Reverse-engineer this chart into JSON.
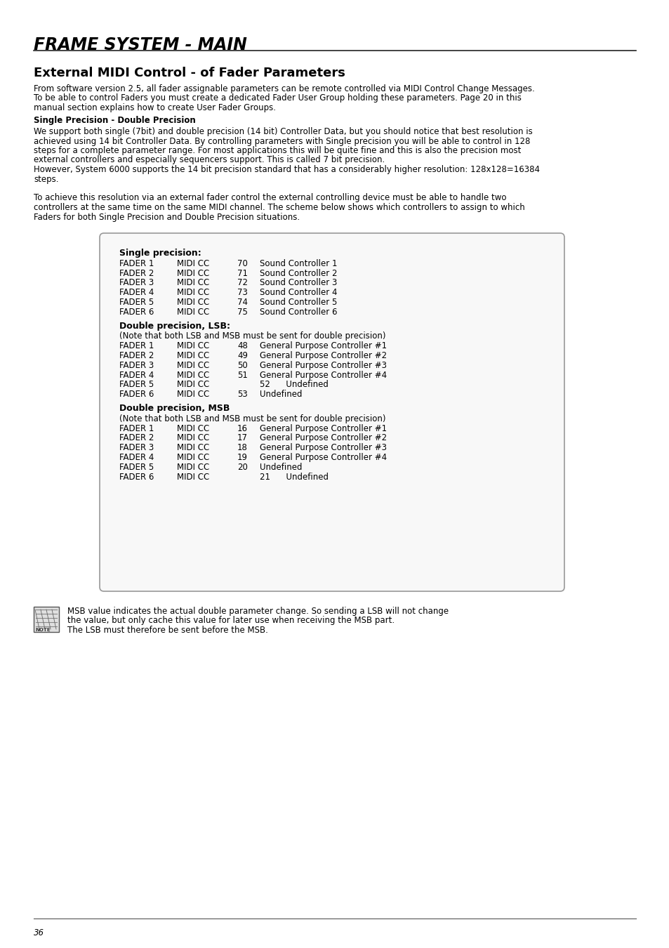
{
  "page_title": "FRAME SYSTEM - MAIN",
  "section_title": "External MIDI Control - of Fader Parameters",
  "intro_text_lines": [
    "From software version 2.5, all fader assignable parameters can be remote controlled via MIDI Control Change Messages.",
    "To be able to control Faders you must create a dedicated Fader User Group holding these parameters. Page 20 in this",
    "manual section explains how to create User Fader Groups."
  ],
  "subsection_title": "Single Precision - Double Precision",
  "body_text1_lines": [
    "We support both single (7bit) and double precision (14 bit) Controller Data, but you should notice that best resolution is",
    "achieved using 14 bit Controller Data. By controlling parameters with Single precision you will be able to control in 128",
    "steps for a complete parameter range. For most applications this will be quite fine and this is also the precision most",
    "external controllers and especially sequencers support. This is called 7 bit precision.",
    "However, System 6000 supports the 14 bit precision standard that has a considerably higher resolution: 128x128=16384",
    "steps."
  ],
  "body_text2_lines": [
    "To achieve this resolution via an external fader control the external controlling device must be able to handle two",
    "controllers at the same time on the same MIDI channel. The scheme below shows which controllers to assign to which",
    "Faders for both Single Precision and Double Precision situations."
  ],
  "box_single_precision_label": "Single precision:",
  "single_rows": [
    [
      "FADER 1",
      "MIDI CC",
      "70",
      "Sound Controller 1"
    ],
    [
      "FADER 2",
      "MIDI CC",
      "71",
      "Sound Controller 2"
    ],
    [
      "FADER 3",
      "MIDI CC",
      "72",
      "Sound Controller 3"
    ],
    [
      "FADER 4",
      "MIDI CC",
      "73",
      "Sound Controller 4"
    ],
    [
      "FADER 5",
      "MIDI CC",
      "74",
      "Sound Controller 5"
    ],
    [
      "FADER 6",
      "MIDI CC",
      "75",
      "Sound Controller 6"
    ]
  ],
  "box_double_lsb_label": "Double precision, LSB:",
  "double_lsb_note": "(Note that both LSB and MSB must be sent for double precision)",
  "double_lsb_rows": [
    [
      "FADER 1",
      "MIDI CC",
      "48",
      "General Purpose Controller #1"
    ],
    [
      "FADER 2",
      "MIDI CC",
      "49",
      "General Purpose Controller #2"
    ],
    [
      "FADER 3",
      "MIDI CC",
      "50",
      "General Purpose Controller #3"
    ],
    [
      "FADER 4",
      "MIDI CC",
      "51",
      "General Purpose Controller #4"
    ],
    [
      "FADER 5",
      "MIDI CC",
      "",
      "52      Undefined"
    ],
    [
      "FADER 6",
      "MIDI CC",
      "53",
      "Undefined"
    ]
  ],
  "box_double_msb_label": "Double precision, MSB",
  "double_msb_note": "(Note that both LSB and MSB must be sent for double precision)",
  "double_msb_rows": [
    [
      "FADER 1",
      "MIDI CC",
      "16",
      "General Purpose Controller #1"
    ],
    [
      "FADER 2",
      "MIDI CC",
      "17",
      "General Purpose Controller #2"
    ],
    [
      "FADER 3",
      "MIDI CC",
      "18",
      "General Purpose Controller #3"
    ],
    [
      "FADER 4",
      "MIDI CC",
      "19",
      "General Purpose Controller #4"
    ],
    [
      "FADER 5",
      "MIDI CC",
      "20",
      "Undefined"
    ],
    [
      "FADER 6",
      "MIDI CC",
      "",
      "21      Undefined"
    ]
  ],
  "note_text_lines": [
    "MSB value indicates the actual double parameter change. So sending a LSB will not change",
    "the value, but only cache this value for later use when receiving the MSB part.",
    "The LSB must therefore be sent before the MSB."
  ],
  "page_number": "36",
  "bg_color": "#ffffff",
  "text_color": "#000000"
}
